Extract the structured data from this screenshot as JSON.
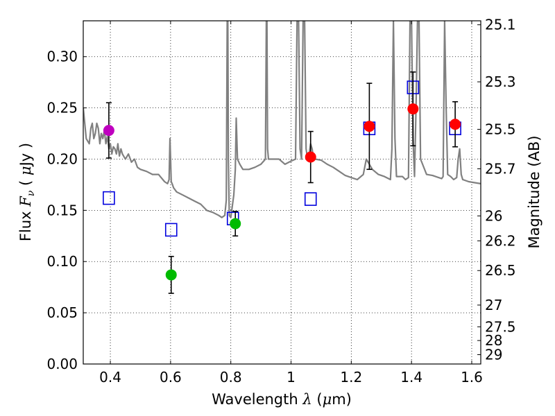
{
  "chart_data": {
    "type": "scatter",
    "title": "",
    "xlabel": "Wavelength",
    "xlabel_symbol": "λ",
    "xlabel_unit_open": " (",
    "xlabel_unit_mu": "μ",
    "xlabel_unit_close": "m)",
    "ylabel": "Flux",
    "ylabel_symbol": "F",
    "ylabel_symbol_sub": "ν",
    "ylabel_unit_open": "( ",
    "ylabel_unit_mu": "μ",
    "ylabel_unit_close": "Jy )",
    "y2label": "Magnitude (AB)",
    "xlim": [
      0.31,
      1.63
    ],
    "ylim": [
      0.0,
      0.335
    ],
    "grid": true,
    "x_ticks": [
      0.4,
      0.6,
      0.8,
      1.0,
      1.2,
      1.4,
      1.6
    ],
    "x_tick_labels": [
      "0.4",
      "0.6",
      "0.8",
      "1",
      "1.2",
      "1.4",
      "1.6"
    ],
    "y_ticks": [
      0.0,
      0.05,
      0.1,
      0.15,
      0.2,
      0.25,
      0.3
    ],
    "y_tick_labels": [
      "0.00",
      "0.05",
      "0.10",
      "0.15",
      "0.20",
      "0.25",
      "0.30"
    ],
    "y2_ticks": [
      25.1,
      25.3,
      25.5,
      25.7,
      26,
      26.2,
      26.5,
      27,
      27.5,
      28,
      29
    ],
    "y2_tick_labels": [
      "25.1",
      "25.3",
      "25.5",
      "25.7",
      "26",
      "26.2",
      "26.5",
      "27",
      "27.5",
      "28",
      "29"
    ],
    "colors": {
      "spectrum": "#808080",
      "model": "#0000dd",
      "magenta": "#bf00bf",
      "green": "#00bb00",
      "red": "#ff0000",
      "errorbar": "#000000",
      "grid": "#000000"
    },
    "series": [
      {
        "name": "template spectrum",
        "kind": "line",
        "color_key": "spectrum",
        "x": [
          0.31,
          0.32,
          0.33,
          0.335,
          0.34,
          0.345,
          0.35,
          0.355,
          0.36,
          0.365,
          0.37,
          0.375,
          0.38,
          0.385,
          0.39,
          0.395,
          0.4,
          0.405,
          0.41,
          0.415,
          0.42,
          0.425,
          0.43,
          0.435,
          0.44,
          0.45,
          0.46,
          0.47,
          0.48,
          0.49,
          0.5,
          0.52,
          0.54,
          0.56,
          0.58,
          0.59,
          0.595,
          0.598,
          0.6,
          0.602,
          0.605,
          0.61,
          0.62,
          0.64,
          0.66,
          0.68,
          0.7,
          0.72,
          0.74,
          0.76,
          0.77,
          0.78,
          0.785,
          0.788,
          0.79,
          0.792,
          0.795,
          0.8,
          0.81,
          0.815,
          0.818,
          0.822,
          0.83,
          0.84,
          0.86,
          0.88,
          0.9,
          0.915,
          0.918,
          0.92,
          0.922,
          0.925,
          0.94,
          0.96,
          0.98,
          1.0,
          1.015,
          1.02,
          1.025,
          1.03,
          1.035,
          1.04,
          1.045,
          1.05,
          1.055,
          1.06,
          1.065,
          1.07,
          1.075,
          1.08,
          1.1,
          1.12,
          1.14,
          1.16,
          1.18,
          1.2,
          1.22,
          1.24,
          1.25,
          1.27,
          1.29,
          1.31,
          1.33,
          1.335,
          1.34,
          1.345,
          1.35,
          1.37,
          1.38,
          1.39,
          1.395,
          1.4,
          1.405,
          1.41,
          1.415,
          1.42,
          1.425,
          1.43,
          1.45,
          1.47,
          1.49,
          1.5,
          1.505,
          1.51,
          1.515,
          1.52,
          1.53,
          1.54,
          1.55,
          1.555,
          1.56,
          1.565,
          1.57,
          1.59,
          1.61,
          1.63
        ],
        "y": [
          0.25,
          0.22,
          0.215,
          0.23,
          0.235,
          0.22,
          0.225,
          0.235,
          0.23,
          0.215,
          0.225,
          0.22,
          0.228,
          0.215,
          0.222,
          0.21,
          0.215,
          0.205,
          0.212,
          0.21,
          0.205,
          0.215,
          0.203,
          0.21,
          0.205,
          0.2,
          0.205,
          0.197,
          0.2,
          0.192,
          0.19,
          0.188,
          0.185,
          0.185,
          0.178,
          0.176,
          0.18,
          0.22,
          0.2,
          0.178,
          0.176,
          0.172,
          0.168,
          0.165,
          0.162,
          0.159,
          0.156,
          0.15,
          0.148,
          0.145,
          0.143,
          0.145,
          0.16,
          0.335,
          0.335,
          0.2,
          0.145,
          0.143,
          0.165,
          0.19,
          0.24,
          0.2,
          0.195,
          0.19,
          0.19,
          0.192,
          0.195,
          0.2,
          0.335,
          0.335,
          0.21,
          0.2,
          0.2,
          0.2,
          0.195,
          0.198,
          0.2,
          0.335,
          0.335,
          0.21,
          0.2,
          0.335,
          0.335,
          0.21,
          0.2,
          0.205,
          0.215,
          0.21,
          0.2,
          0.2,
          0.199,
          0.195,
          0.192,
          0.188,
          0.184,
          0.182,
          0.18,
          0.185,
          0.2,
          0.19,
          0.185,
          0.183,
          0.18,
          0.21,
          0.335,
          0.22,
          0.183,
          0.183,
          0.18,
          0.182,
          0.335,
          0.335,
          0.22,
          0.183,
          0.25,
          0.335,
          0.335,
          0.2,
          0.185,
          0.184,
          0.182,
          0.181,
          0.183,
          0.335,
          0.25,
          0.185,
          0.183,
          0.18,
          0.182,
          0.2,
          0.21,
          0.185,
          0.18,
          0.178,
          0.177,
          0.176
        ]
      },
      {
        "name": "model photometry",
        "kind": "open-square",
        "color_key": "model",
        "x": [
          0.395,
          0.602,
          0.807,
          1.065,
          1.26,
          1.405,
          1.545
        ],
        "y": [
          0.162,
          0.131,
          0.142,
          0.161,
          0.23,
          0.27,
          0.23
        ]
      },
      {
        "name": "observed (magenta)",
        "kind": "filled-circle",
        "color_key": "magenta",
        "x": [
          0.395
        ],
        "y": [
          0.228
        ],
        "yerr": [
          0.027
        ]
      },
      {
        "name": "observed (green)",
        "kind": "filled-circle",
        "color_key": "green",
        "x": [
          0.602,
          0.815
        ],
        "y": [
          0.087,
          0.137
        ],
        "yerr": [
          0.018,
          0.012
        ]
      },
      {
        "name": "observed (red)",
        "kind": "filled-circle",
        "color_key": "red",
        "x": [
          1.065,
          1.26,
          1.405,
          1.545
        ],
        "y": [
          0.202,
          0.232,
          0.249,
          0.234
        ],
        "yerr": [
          0.025,
          0.042,
          0.036,
          0.022
        ]
      }
    ]
  }
}
